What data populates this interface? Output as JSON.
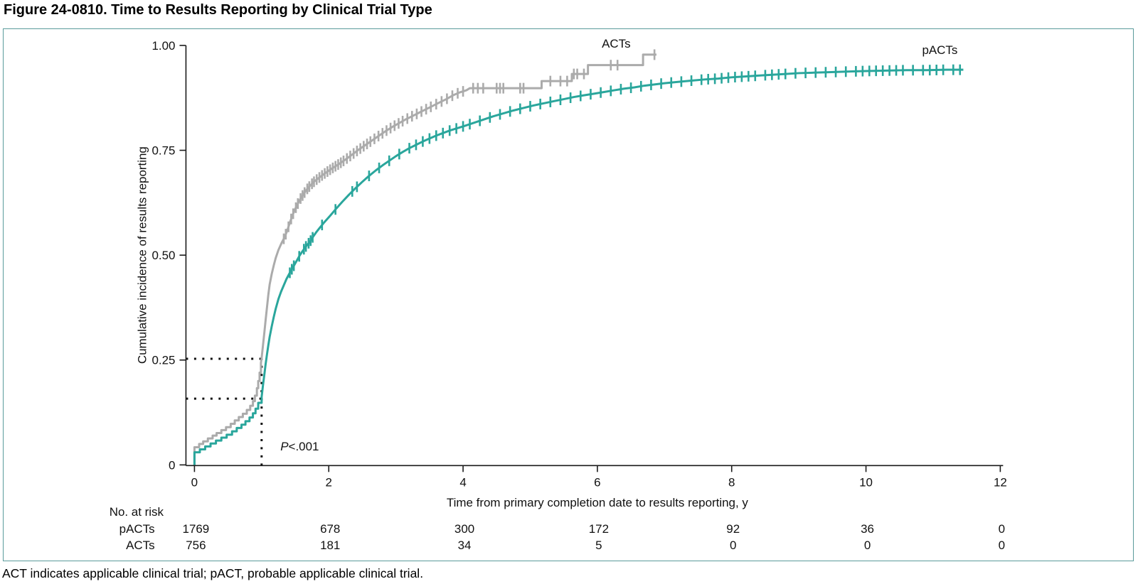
{
  "figure": {
    "title": "Figure 24-0810. Time to Results Reporting by Clinical Trial Type",
    "footnote": "ACT indicates applicable clinical trial; pACT, probable applicable clinical trial."
  },
  "colors": {
    "axis": "#1a1a1a",
    "panel_border": "#5a9b9b",
    "reference_line": "#111111"
  },
  "chart_data": {
    "type": "line",
    "subtype": "cumulative-incidence-step-curves",
    "title": "",
    "xlabel": "Time from primary completion date to results reporting, y",
    "ylabel": "Cumulative incidence of results reporting",
    "xlim": [
      0,
      12
    ],
    "ylim": [
      0,
      1
    ],
    "grid": false,
    "xticks": [
      {
        "v": 0,
        "label": "0"
      },
      {
        "v": 2,
        "label": "2"
      },
      {
        "v": 4,
        "label": "4"
      },
      {
        "v": 6,
        "label": "6"
      },
      {
        "v": 8,
        "label": "8"
      },
      {
        "v": 10,
        "label": "10"
      },
      {
        "v": 12,
        "label": "12"
      }
    ],
    "yticks": [
      {
        "v": 0,
        "label": "0"
      },
      {
        "v": 0.25,
        "label": "0.25"
      },
      {
        "v": 0.5,
        "label": "0.50"
      },
      {
        "v": 0.75,
        "label": "0.75"
      },
      {
        "v": 1,
        "label": "1.00"
      }
    ],
    "series": [
      {
        "name": "ACTs",
        "color": "#ababab",
        "label_pos": {
          "x": 6.28,
          "y": 1.005
        },
        "points": [
          [
            0,
            0
          ],
          [
            0,
            0.042
          ],
          [
            0.07,
            0.042
          ],
          [
            0.07,
            0.05
          ],
          [
            0.13,
            0.05
          ],
          [
            0.13,
            0.056
          ],
          [
            0.2,
            0.056
          ],
          [
            0.2,
            0.063
          ],
          [
            0.27,
            0.063
          ],
          [
            0.27,
            0.07
          ],
          [
            0.33,
            0.07
          ],
          [
            0.33,
            0.076
          ],
          [
            0.4,
            0.076
          ],
          [
            0.4,
            0.083
          ],
          [
            0.47,
            0.083
          ],
          [
            0.47,
            0.09
          ],
          [
            0.54,
            0.09
          ],
          [
            0.54,
            0.098
          ],
          [
            0.6,
            0.098
          ],
          [
            0.6,
            0.106
          ],
          [
            0.66,
            0.106
          ],
          [
            0.66,
            0.114
          ],
          [
            0.72,
            0.114
          ],
          [
            0.72,
            0.122
          ],
          [
            0.78,
            0.122
          ],
          [
            0.78,
            0.131
          ],
          [
            0.83,
            0.131
          ],
          [
            0.83,
            0.141
          ],
          [
            0.87,
            0.141
          ],
          [
            0.87,
            0.152
          ],
          [
            0.9,
            0.152
          ],
          [
            0.9,
            0.165
          ],
          [
            0.93,
            0.165
          ],
          [
            0.93,
            0.183
          ],
          [
            0.95,
            0.183
          ],
          [
            0.95,
            0.2
          ],
          [
            0.97,
            0.2
          ],
          [
            0.97,
            0.22
          ],
          [
            0.99,
            0.22
          ],
          [
            0.99,
            0.243
          ],
          [
            1,
            0.255
          ],
          [
            1.02,
            0.285
          ],
          [
            1.04,
            0.315
          ],
          [
            1.06,
            0.345
          ],
          [
            1.08,
            0.375
          ],
          [
            1.1,
            0.405
          ],
          [
            1.12,
            0.43
          ],
          [
            1.15,
            0.455
          ],
          [
            1.18,
            0.475
          ],
          [
            1.21,
            0.493
          ],
          [
            1.25,
            0.512
          ],
          [
            1.3,
            0.53
          ],
          [
            1.34,
            0.542
          ],
          [
            1.38,
            0.558
          ],
          [
            1.43,
            0.582
          ],
          [
            1.48,
            0.603
          ],
          [
            1.53,
            0.62
          ],
          [
            1.58,
            0.635
          ],
          [
            1.63,
            0.647
          ],
          [
            1.68,
            0.658
          ],
          [
            1.73,
            0.667
          ],
          [
            1.78,
            0.675
          ],
          [
            1.85,
            0.684
          ],
          [
            1.95,
            0.696
          ],
          [
            2.05,
            0.707
          ],
          [
            2.15,
            0.717
          ],
          [
            2.25,
            0.728
          ],
          [
            2.35,
            0.74
          ],
          [
            2.45,
            0.752
          ],
          [
            2.55,
            0.763
          ],
          [
            2.65,
            0.774
          ],
          [
            2.75,
            0.785
          ],
          [
            2.85,
            0.796
          ],
          [
            2.95,
            0.806
          ],
          [
            3.05,
            0.815
          ],
          [
            3.15,
            0.824
          ],
          [
            3.25,
            0.832
          ],
          [
            3.35,
            0.84
          ],
          [
            3.45,
            0.848
          ],
          [
            3.55,
            0.856
          ],
          [
            3.65,
            0.864
          ],
          [
            3.75,
            0.872
          ],
          [
            3.85,
            0.881
          ],
          [
            3.95,
            0.888
          ],
          [
            4.05,
            0.893
          ],
          [
            4.1,
            0.898
          ],
          [
            5.17,
            0.898
          ],
          [
            5.17,
            0.915
          ],
          [
            5.62,
            0.915
          ],
          [
            5.62,
            0.932
          ],
          [
            5.86,
            0.932
          ],
          [
            5.86,
            0.953
          ],
          [
            6.68,
            0.953
          ],
          [
            6.68,
            0.978
          ],
          [
            6.88,
            0.978
          ]
        ],
        "censor_times": [
          1.33,
          1.36,
          1.4,
          1.44,
          1.47,
          1.51,
          1.54,
          1.58,
          1.61,
          1.64,
          1.68,
          1.71,
          1.75,
          1.78,
          1.82,
          1.86,
          1.9,
          1.94,
          1.98,
          2.02,
          2.06,
          2.1,
          2.14,
          2.18,
          2.22,
          2.27,
          2.32,
          2.37,
          2.42,
          2.47,
          2.52,
          2.57,
          2.62,
          2.68,
          2.74,
          2.8,
          2.86,
          2.92,
          2.98,
          3.04,
          3.1,
          3.17,
          3.24,
          3.31,
          3.38,
          3.45,
          3.52,
          3.6,
          3.68,
          3.76,
          3.84,
          3.92,
          4.0,
          4.15,
          4.22,
          4.3,
          4.5,
          4.55,
          4.6,
          4.85,
          4.9,
          5.3,
          5.45,
          5.55,
          5.65,
          5.7,
          5.8,
          6.2,
          6.3,
          6.85
        ]
      },
      {
        "name": "pACTs",
        "color": "#2aa69c",
        "label_pos": {
          "x": 11.1,
          "y": 0.99
        },
        "points": [
          [
            0,
            0
          ],
          [
            0,
            0.03
          ],
          [
            0.08,
            0.03
          ],
          [
            0.08,
            0.037
          ],
          [
            0.16,
            0.037
          ],
          [
            0.16,
            0.044
          ],
          [
            0.24,
            0.044
          ],
          [
            0.24,
            0.051
          ],
          [
            0.32,
            0.051
          ],
          [
            0.32,
            0.058
          ],
          [
            0.4,
            0.058
          ],
          [
            0.4,
            0.065
          ],
          [
            0.48,
            0.065
          ],
          [
            0.48,
            0.072
          ],
          [
            0.56,
            0.072
          ],
          [
            0.56,
            0.08
          ],
          [
            0.63,
            0.08
          ],
          [
            0.63,
            0.088
          ],
          [
            0.7,
            0.088
          ],
          [
            0.7,
            0.096
          ],
          [
            0.76,
            0.096
          ],
          [
            0.76,
            0.104
          ],
          [
            0.82,
            0.104
          ],
          [
            0.82,
            0.113
          ],
          [
            0.87,
            0.113
          ],
          [
            0.87,
            0.123
          ],
          [
            0.91,
            0.123
          ],
          [
            0.91,
            0.134
          ],
          [
            0.95,
            0.134
          ],
          [
            0.95,
            0.148
          ],
          [
            1,
            0.148
          ],
          [
            1,
            0.162
          ],
          [
            1.02,
            0.19
          ],
          [
            1.04,
            0.215
          ],
          [
            1.06,
            0.24
          ],
          [
            1.08,
            0.263
          ],
          [
            1.1,
            0.285
          ],
          [
            1.12,
            0.305
          ],
          [
            1.15,
            0.33
          ],
          [
            1.18,
            0.352
          ],
          [
            1.21,
            0.372
          ],
          [
            1.25,
            0.395
          ],
          [
            1.29,
            0.413
          ],
          [
            1.33,
            0.428
          ],
          [
            1.37,
            0.443
          ],
          [
            1.42,
            0.458
          ],
          [
            1.47,
            0.472
          ],
          [
            1.52,
            0.486
          ],
          [
            1.57,
            0.5
          ],
          [
            1.62,
            0.512
          ],
          [
            1.67,
            0.523
          ],
          [
            1.72,
            0.532
          ],
          [
            1.77,
            0.545
          ],
          [
            1.82,
            0.556
          ],
          [
            1.87,
            0.566
          ],
          [
            1.92,
            0.576
          ],
          [
            1.97,
            0.585
          ],
          [
            2.02,
            0.594
          ],
          [
            2.1,
            0.609
          ],
          [
            2.2,
            0.627
          ],
          [
            2.3,
            0.644
          ],
          [
            2.4,
            0.66
          ],
          [
            2.5,
            0.675
          ],
          [
            2.6,
            0.689
          ],
          [
            2.7,
            0.702
          ],
          [
            2.8,
            0.714
          ],
          [
            2.9,
            0.725
          ],
          [
            3,
            0.736
          ],
          [
            3.1,
            0.746
          ],
          [
            3.2,
            0.755
          ],
          [
            3.3,
            0.763
          ],
          [
            3.4,
            0.771
          ],
          [
            3.5,
            0.778
          ],
          [
            3.6,
            0.785
          ],
          [
            3.7,
            0.791
          ],
          [
            3.8,
            0.797
          ],
          [
            3.9,
            0.802
          ],
          [
            4,
            0.807
          ],
          [
            4.15,
            0.815
          ],
          [
            4.3,
            0.823
          ],
          [
            4.45,
            0.831
          ],
          [
            4.6,
            0.838
          ],
          [
            4.75,
            0.845
          ],
          [
            4.9,
            0.851
          ],
          [
            5.05,
            0.857
          ],
          [
            5.2,
            0.862
          ],
          [
            5.35,
            0.867
          ],
          [
            5.5,
            0.872
          ],
          [
            5.65,
            0.877
          ],
          [
            5.8,
            0.881
          ],
          [
            5.95,
            0.885
          ],
          [
            6.1,
            0.889
          ],
          [
            6.25,
            0.893
          ],
          [
            6.4,
            0.897
          ],
          [
            6.55,
            0.9
          ],
          [
            6.7,
            0.904
          ],
          [
            6.85,
            0.907
          ],
          [
            7,
            0.91
          ],
          [
            7.2,
            0.913
          ],
          [
            7.4,
            0.916
          ],
          [
            7.6,
            0.919
          ],
          [
            7.8,
            0.921
          ],
          [
            8,
            0.924
          ],
          [
            8.2,
            0.926
          ],
          [
            8.4,
            0.928
          ],
          [
            8.6,
            0.93
          ],
          [
            8.8,
            0.932
          ],
          [
            9,
            0.934
          ],
          [
            9.2,
            0.935
          ],
          [
            9.4,
            0.936
          ],
          [
            9.6,
            0.937
          ],
          [
            9.8,
            0.938
          ],
          [
            10,
            0.939
          ],
          [
            10.3,
            0.94
          ],
          [
            10.6,
            0.941
          ],
          [
            10.9,
            0.941
          ],
          [
            11.2,
            0.942
          ],
          [
            11.45,
            0.942
          ]
        ],
        "censor_times": [
          1.42,
          1.45,
          1.48,
          1.56,
          1.63,
          1.66,
          1.7,
          1.73,
          1.76,
          1.9,
          2.1,
          2.35,
          2.42,
          2.6,
          2.75,
          2.9,
          3.05,
          3.2,
          3.3,
          3.4,
          3.5,
          3.6,
          3.7,
          3.8,
          3.9,
          4.0,
          4.1,
          4.25,
          4.4,
          4.55,
          4.7,
          4.85,
          5.0,
          5.15,
          5.3,
          5.45,
          5.6,
          5.75,
          5.9,
          6.05,
          6.2,
          6.35,
          6.5,
          6.65,
          6.8,
          6.95,
          7.1,
          7.25,
          7.4,
          7.55,
          7.65,
          7.75,
          7.85,
          7.95,
          8.05,
          8.15,
          8.25,
          8.35,
          8.5,
          8.6,
          8.7,
          8.8,
          8.95,
          9.1,
          9.25,
          9.4,
          9.55,
          9.7,
          9.85,
          9.95,
          10.05,
          10.15,
          10.25,
          10.35,
          10.45,
          10.55,
          10.7,
          10.85,
          10.95,
          11.05,
          11.15,
          11.3,
          11.4
        ]
      }
    ],
    "annotations": {
      "p_value": {
        "symbol": "P",
        "comparison": "<.001",
        "x": 1.28,
        "y": 0.045
      },
      "reference_lines": [
        {
          "type": "vertical",
          "x": 1,
          "y_from": 0,
          "y_to": 0.253
        },
        {
          "type": "horizontal",
          "y": 0.253,
          "x_from": 0,
          "x_to": 1.02
        },
        {
          "type": "horizontal",
          "y": 0.158,
          "x_from": 0,
          "x_to": 1.02
        }
      ]
    },
    "risk_table": {
      "header": "No. at risk",
      "times": [
        0,
        2,
        4,
        6,
        8,
        10,
        12
      ],
      "rows": [
        {
          "name": "pACTs",
          "values": [
            "1769",
            "678",
            "300",
            "172",
            "92",
            "36",
            "0"
          ]
        },
        {
          "name": "ACTs",
          "values": [
            "756",
            "181",
            "34",
            "5",
            "0",
            "0",
            "0"
          ]
        }
      ]
    }
  }
}
